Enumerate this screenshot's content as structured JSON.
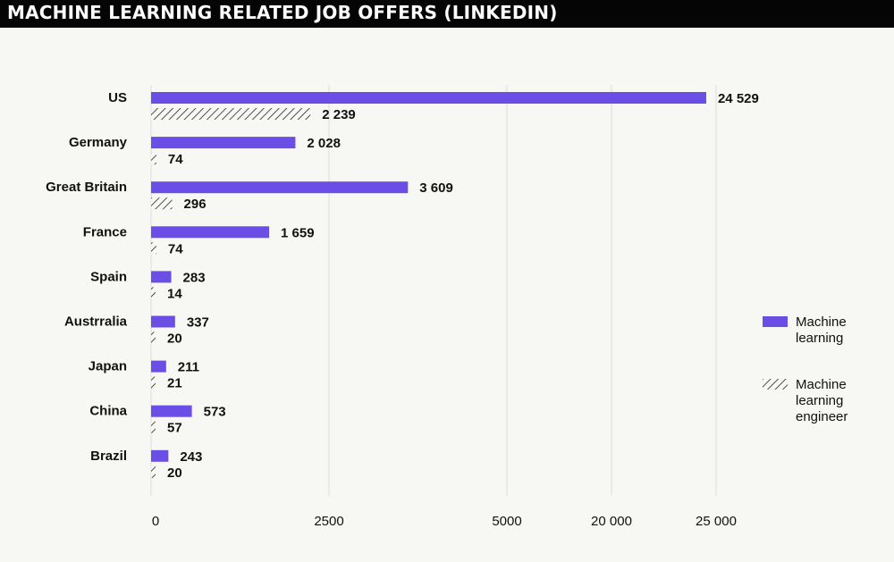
{
  "title": "MACHINE LEARNING RELATED JOB OFFERS (LINKEDIN)",
  "colors": {
    "machine_learning": "#6b4ee6",
    "engineer_hatch": "#222222",
    "background": "#f7f7f3",
    "grid": "#dddddd"
  },
  "legend": {
    "machine_learning": "Machine learning",
    "engineer": "Machine learning engineer"
  },
  "chart_data": {
    "type": "bar",
    "orientation": "horizontal",
    "categories": [
      "US",
      "Germany",
      "Great Britain",
      "France",
      "Spain",
      "Austrralia",
      "Japan",
      "China",
      "Brazil"
    ],
    "series": [
      {
        "name": "Machine learning",
        "values": [
          24529,
          2028,
          3609,
          1659,
          283,
          337,
          211,
          573,
          243
        ]
      },
      {
        "name": "Machine learning engineer",
        "values": [
          2239,
          74,
          296,
          74,
          14,
          20,
          21,
          57,
          20
        ]
      }
    ],
    "value_labels": {
      "Machine learning": [
        "24 529",
        "2 028",
        "3 609",
        "1 659",
        "283",
        "337",
        "211",
        "573",
        "243"
      ],
      "Machine learning engineer": [
        "2 239",
        "74",
        "296",
        "74",
        "14",
        "20",
        "21",
        "57",
        "20"
      ]
    },
    "x_ticks": [
      0,
      2500,
      5000,
      20000,
      25000
    ],
    "x_tick_labels": [
      "0",
      "2500",
      "5000",
      "20 000",
      "25 000"
    ],
    "x_scale": "piecewise (axis break between 5000 and 20000)",
    "grid": true,
    "legend_position": "right"
  }
}
